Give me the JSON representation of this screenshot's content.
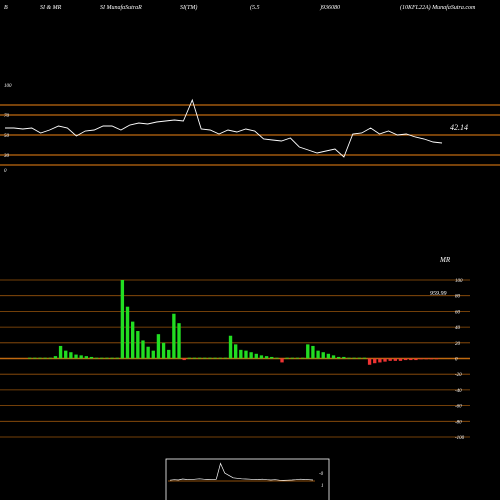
{
  "header": {
    "b": "B",
    "title1": "SI & MR",
    "title2": "SI MunafaSutraR",
    "title3": "SI(TM)",
    "val1": "(5.5",
    "val2": ")936080",
    "site": "(10KFL22A) MunafaSutra.com"
  },
  "colors": {
    "background": "#000000",
    "line": "#ffffff",
    "guide": "#c06a10",
    "up_bar": "#22dd22",
    "down_bar": "#ee3333"
  },
  "chart_data": [
    {
      "type": "line",
      "name": "rsi",
      "y_tick_labels": [
        "100",
        "70",
        "50",
        "30",
        "0"
      ],
      "guide_levels": [
        100,
        80,
        70,
        50,
        30,
        20,
        0
      ],
      "ylim": [
        0,
        100
      ],
      "last_value_label": "42.14",
      "values": [
        57,
        57,
        56,
        57,
        52,
        55,
        59,
        57,
        49,
        54,
        55,
        59,
        59,
        55,
        60,
        62,
        61,
        63,
        64,
        65,
        64,
        85,
        56,
        55,
        51,
        55,
        53,
        56,
        54,
        46,
        45,
        44,
        47,
        38,
        35,
        32,
        34,
        36,
        28,
        51,
        52,
        57,
        51,
        54,
        50,
        51,
        48,
        46,
        43,
        42
      ]
    },
    {
      "type": "bar",
      "name": "mr",
      "title": "MR",
      "value_label": "959.99",
      "y_tick_labels": [
        "100",
        "80",
        "60",
        "40",
        "20",
        "0",
        "-20",
        "-40",
        "-60",
        "-80",
        "-100"
      ],
      "guide_levels": [
        100,
        80,
        60,
        40,
        20,
        0,
        -20,
        -40,
        -60,
        -80,
        -100
      ],
      "ylim": [
        -100,
        100
      ],
      "values": [
        1,
        1,
        1,
        1,
        1,
        3,
        16,
        10,
        8,
        5,
        4,
        3,
        2,
        1,
        1,
        1,
        1,
        1,
        100,
        66,
        47,
        35,
        23,
        15,
        10,
        31,
        20,
        11,
        57,
        45,
        -2,
        1,
        1,
        1,
        1,
        1,
        1,
        1,
        1,
        29,
        18,
        11,
        10,
        8,
        6,
        4,
        3,
        2,
        1,
        -5,
        1,
        1,
        1,
        1,
        18,
        16,
        10,
        8,
        6,
        4,
        2,
        2,
        1,
        1,
        1,
        1,
        -8,
        -6,
        -5,
        -4,
        -3,
        -3,
        -3,
        -2,
        -2,
        -2,
        -1,
        -1,
        -1,
        -1
      ]
    },
    {
      "type": "line",
      "name": "mini",
      "tick_labels": [
        "-0",
        "1"
      ],
      "values": [
        20,
        22,
        21,
        25,
        23,
        22,
        24,
        26,
        24,
        23,
        22,
        24,
        90,
        50,
        40,
        30,
        28,
        26,
        25,
        24,
        22,
        23,
        24,
        22,
        21,
        22,
        20,
        19,
        20,
        21,
        22,
        24,
        23,
        22,
        21
      ]
    }
  ]
}
